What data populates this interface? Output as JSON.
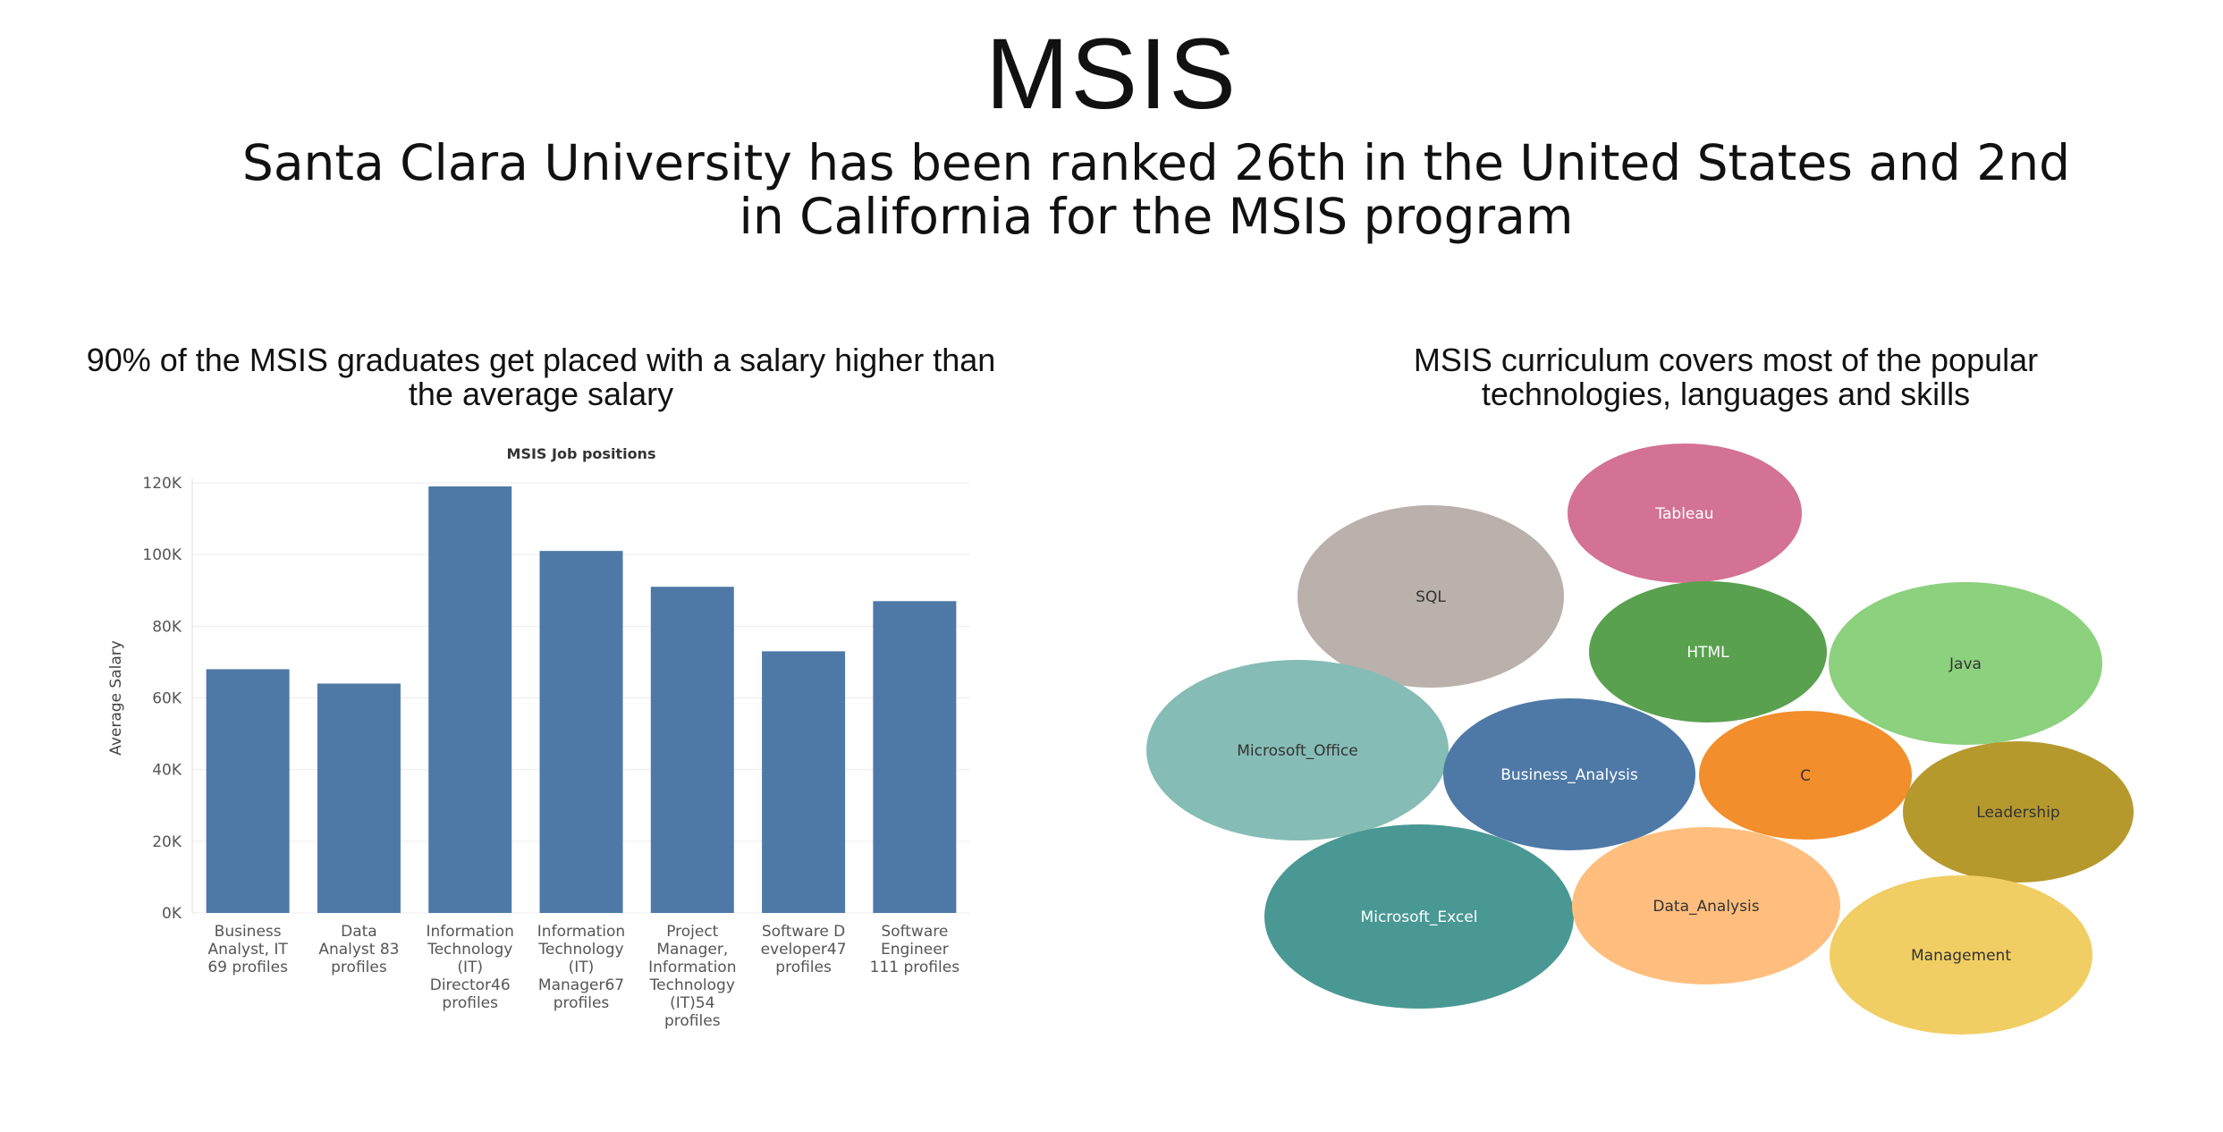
{
  "slide": {
    "title": "MSIS",
    "subtitle": "Santa Clara University has been ranked 26th in the United States and 2nd in California for the MSIS program",
    "left_caption": "90% of the MSIS graduates get placed with a salary higher than the average salary",
    "right_caption": "MSIS curriculum covers most of the popular technologies, languages and skills"
  },
  "chart_data": [
    {
      "type": "bar",
      "title": "MSIS Job positions",
      "xlabel": "",
      "ylabel": "Average Salary",
      "ylim": [
        0,
        120000
      ],
      "yticks": [
        "0K",
        "20K",
        "40K",
        "60K",
        "80K",
        "100K",
        "120K"
      ],
      "grid": true,
      "bar_color": "#4e79a7",
      "categories": [
        "Business Analyst, IT 69 profiles",
        "Data Analyst 83 profiles",
        "Information Technology (IT) Director46 profiles",
        "Information Technology (IT) Manager67 profiles",
        "Project Manager, Information Technology (IT)54 profiles",
        "Software Developer47 profiles",
        "Software Engineer 111 profiles"
      ],
      "category_label_lines": [
        [
          "Business",
          "Analyst, IT",
          "69 profiles"
        ],
        [
          "Data",
          "Analyst 83",
          "profiles"
        ],
        [
          "Information",
          "Technology",
          "(IT)",
          "Director46",
          "profiles"
        ],
        [
          "Information",
          "Technology",
          "(IT)",
          "Manager67",
          "profiles"
        ],
        [
          "Project",
          "Manager,",
          "Information",
          "Technology",
          "(IT)54",
          "profiles"
        ],
        [
          "Software D",
          "eveloper47",
          "profiles"
        ],
        [
          "Software",
          "Engineer",
          "111 profiles"
        ]
      ],
      "values": [
        68000,
        64000,
        119000,
        101000,
        91000,
        73000,
        87000
      ]
    },
    {
      "type": "bubble",
      "title": "",
      "labels": [
        "Tableau",
        "SQL",
        "HTML",
        "Java",
        "Microsoft_Office",
        "Business_Analysis",
        "C",
        "Leadership",
        "Microsoft_Excel",
        "Data_Analysis",
        "Management"
      ],
      "colors": [
        "#d37295",
        "#bab0ac",
        "#59a14f",
        "#8cd17d",
        "#86bcb6",
        "#4e79a7",
        "#f28e2b",
        "#b6992d",
        "#499894",
        "#ffbe7d",
        "#f1ce63"
      ],
      "label_colors": [
        "#ffffff",
        "#333333",
        "#ffffff",
        "#333333",
        "#333333",
        "#ffffff",
        "#333333",
        "#333333",
        "#ffffff",
        "#333333",
        "#333333"
      ]
    }
  ]
}
